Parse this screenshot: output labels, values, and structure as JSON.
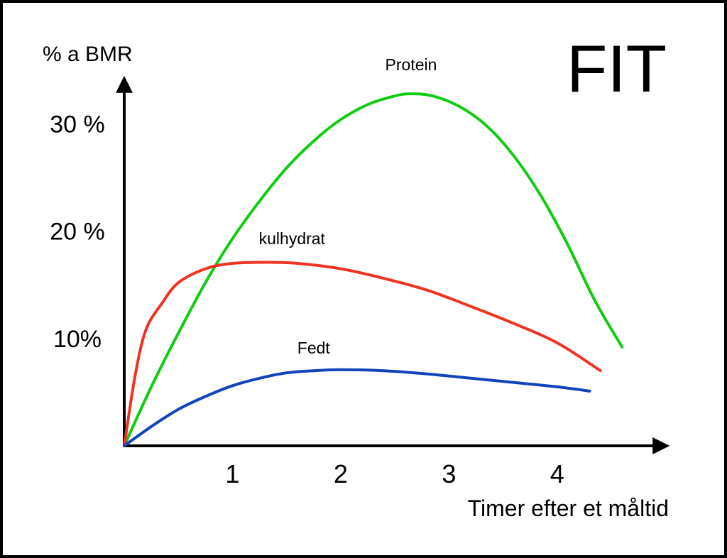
{
  "chart_data": {
    "type": "line",
    "title": "FIT",
    "ylabel": "% a BMR",
    "xlabel": "Timer efter et måltid",
    "x_ticks": [
      {
        "value": 1,
        "label": "1"
      },
      {
        "value": 2,
        "label": "2"
      },
      {
        "value": 3,
        "label": "3"
      },
      {
        "value": 4,
        "label": "4"
      }
    ],
    "y_ticks": [
      {
        "value": 10,
        "label": "10%"
      },
      {
        "value": 20,
        "label": "20 %"
      },
      {
        "value": 30,
        "label": "30 %"
      }
    ],
    "xlim": [
      0,
      4.9
    ],
    "ylim": [
      0,
      34
    ],
    "grid": false,
    "legend": "none",
    "series": [
      {
        "name": "Protein",
        "color": "#11cc11",
        "label_at": [
          2.65,
          35
        ],
        "x": [
          0,
          0.25,
          0.5,
          0.75,
          1.0,
          1.25,
          1.5,
          1.75,
          2.0,
          2.25,
          2.5,
          2.65,
          2.85,
          3.1,
          3.35,
          3.6,
          3.85,
          4.1,
          4.35,
          4.6
        ],
        "y": [
          0,
          5.5,
          10.5,
          15.2,
          19.3,
          22.8,
          25.9,
          28.4,
          30.4,
          31.8,
          32.6,
          32.8,
          32.6,
          31.6,
          29.8,
          27.0,
          23.3,
          18.7,
          13.5,
          9.2
        ]
      },
      {
        "name": "kulhydrat",
        "color": "#ee3322",
        "label_at": [
          1.55,
          18.8
        ],
        "x": [
          0,
          0.1,
          0.2,
          0.35,
          0.5,
          0.75,
          1.0,
          1.3,
          1.6,
          2.0,
          2.4,
          2.8,
          3.2,
          3.6,
          4.0,
          4.4
        ],
        "y": [
          0,
          6.5,
          10.8,
          13.3,
          15.2,
          16.5,
          17.0,
          17.1,
          17.0,
          16.5,
          15.6,
          14.5,
          13.0,
          11.4,
          9.6,
          7.0
        ]
      },
      {
        "name": "Fedt",
        "color": "#1144bb",
        "label_at": [
          1.75,
          8.6
        ],
        "x": [
          0,
          0.25,
          0.5,
          0.75,
          1.0,
          1.25,
          1.5,
          1.75,
          2.0,
          2.4,
          2.8,
          3.2,
          3.6,
          4.0,
          4.3
        ],
        "y": [
          0,
          1.8,
          3.4,
          4.6,
          5.6,
          6.3,
          6.8,
          7.0,
          7.1,
          7.0,
          6.7,
          6.3,
          5.9,
          5.5,
          5.1
        ]
      }
    ]
  }
}
